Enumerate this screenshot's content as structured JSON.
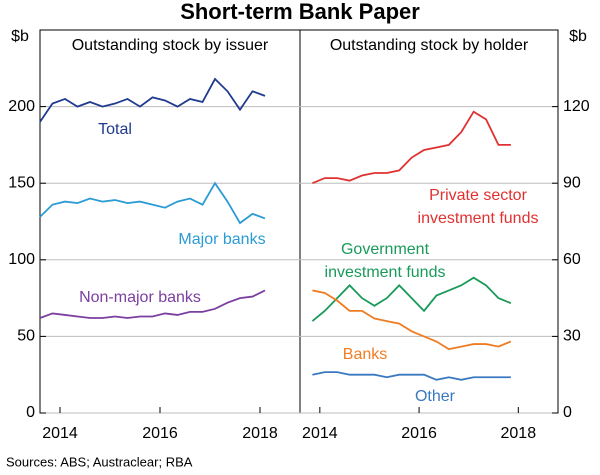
{
  "title": "Short-term Bank Paper",
  "source": "Sources: ABS; Austraclear; RBA",
  "chart_data": [
    {
      "type": "line",
      "subtitle": "Outstanding stock by issuer",
      "y_label": "$b",
      "xlim": [
        2013.6,
        2018.8
      ],
      "xticks": [
        2014,
        2016,
        2018
      ],
      "ylim": [
        0,
        250
      ],
      "yticks": [
        0,
        50,
        100,
        150,
        200
      ],
      "grid": true,
      "x": [
        2013.6,
        2013.85,
        2014.1,
        2014.35,
        2014.6,
        2014.85,
        2015.1,
        2015.35,
        2015.6,
        2015.85,
        2016.1,
        2016.35,
        2016.6,
        2016.85,
        2017.1,
        2017.35,
        2017.6,
        2017.85,
        2018.1
      ],
      "series": [
        {
          "name": [
            "Total"
          ],
          "color": "#1f3a8f",
          "values": [
            190,
            202,
            205,
            200,
            203,
            200,
            202,
            205,
            200,
            206,
            204,
            200,
            205,
            203,
            218,
            210,
            198,
            210,
            207
          ]
        },
        {
          "name": [
            "Major banks"
          ],
          "color": "#2b9bd4",
          "values": [
            128,
            136,
            138,
            137,
            140,
            138,
            139,
            137,
            138,
            136,
            134,
            138,
            140,
            136,
            150,
            138,
            124,
            130,
            127
          ]
        },
        {
          "name": [
            "Non-major banks"
          ],
          "color": "#7b3fa0",
          "values": [
            62,
            65,
            64,
            63,
            62,
            62,
            63,
            62,
            63,
            63,
            65,
            64,
            66,
            66,
            68,
            72,
            75,
            76,
            80
          ]
        }
      ]
    },
    {
      "type": "line",
      "subtitle": "Outstanding stock by holder",
      "y_label": "$b",
      "xlim": [
        2013.6,
        2018.8
      ],
      "xticks": [
        2014,
        2016,
        2018
      ],
      "ylim": [
        0,
        150
      ],
      "yticks": [
        0,
        30,
        60,
        90,
        120
      ],
      "grid": true,
      "x": [
        2013.85,
        2014.1,
        2014.35,
        2014.6,
        2014.85,
        2015.1,
        2015.35,
        2015.6,
        2015.85,
        2016.1,
        2016.35,
        2016.6,
        2016.85,
        2017.1,
        2017.35,
        2017.6,
        2017.85
      ],
      "series": [
        {
          "name": [
            "Private sector",
            "investment funds"
          ],
          "color": "#e03131",
          "values": [
            90,
            92,
            92,
            91,
            93,
            94,
            94,
            95,
            100,
            103,
            104,
            105,
            110,
            118,
            115,
            105,
            105
          ]
        },
        {
          "name": [
            "Government",
            "investment funds"
          ],
          "color": "#1a9a5a",
          "values": [
            36,
            40,
            45,
            50,
            45,
            42,
            45,
            50,
            45,
            40,
            46,
            48,
            50,
            53,
            50,
            45,
            43
          ]
        },
        {
          "name": [
            "Banks"
          ],
          "color": "#f07c22",
          "values": [
            48,
            47,
            44,
            40,
            40,
            37,
            36,
            35,
            32,
            30,
            28,
            25,
            26,
            27,
            27,
            26,
            28
          ]
        },
        {
          "name": [
            "Other"
          ],
          "color": "#3a78c0",
          "values": [
            15,
            16,
            16,
            15,
            15,
            15,
            14,
            15,
            15,
            15,
            13,
            14,
            13,
            14,
            14,
            14,
            14
          ]
        }
      ]
    }
  ]
}
